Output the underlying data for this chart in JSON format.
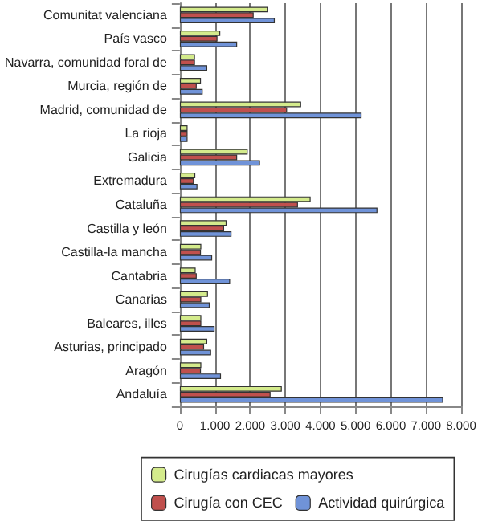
{
  "chart_data": {
    "type": "bar",
    "orientation": "horizontal",
    "categories": [
      "Comunitat valenciana",
      "País vasco",
      "Navarra, comunidad foral de",
      "Murcia, región de",
      "Madrid, comunidad de",
      "La rioja",
      "Galicia",
      "Extremadura",
      "Cataluña",
      "Castilla y león",
      "Castilla-la mancha",
      "Cantabria",
      "Canarias",
      "Baleares, illes",
      "Asturias, principado",
      "Aragón",
      "Andaluía"
    ],
    "series": [
      {
        "name": "Cirugías cardiacas mayores",
        "color": "#d4eb8c",
        "values": [
          2500,
          1150,
          430,
          600,
          3450,
          220,
          1930,
          440,
          3720,
          1330,
          610,
          450,
          800,
          610,
          780,
          610,
          2900
        ]
      },
      {
        "name": "Cirugía con CEC",
        "color": "#c0504d",
        "values": [
          2100,
          1070,
          430,
          480,
          3050,
          220,
          1630,
          400,
          3360,
          1260,
          600,
          480,
          610,
          610,
          690,
          600,
          2580
        ]
      },
      {
        "name": "Actividad quirúrgica",
        "color": "#7093d8",
        "values": [
          2700,
          1630,
          780,
          650,
          5170,
          220,
          2280,
          500,
          5620,
          1470,
          920,
          1430,
          850,
          990,
          890,
          1170,
          7490
        ]
      }
    ],
    "xlim": [
      0,
      8000
    ],
    "xticks": [
      0,
      {
        "value": 1000,
        "label": "1.000"
      },
      {
        "value": 2000,
        "label": "2.000"
      },
      {
        "value": 3000,
        "label": "3.000"
      },
      {
        "value": 4000,
        "label": "4.000"
      },
      {
        "value": 5000,
        "label": "5.000"
      },
      {
        "value": 6000,
        "label": "6.000"
      },
      {
        "value": 7000,
        "label": "7.000"
      },
      {
        "value": 8000,
        "label": "8.000"
      }
    ],
    "grid": "x",
    "legend": "bottom"
  }
}
